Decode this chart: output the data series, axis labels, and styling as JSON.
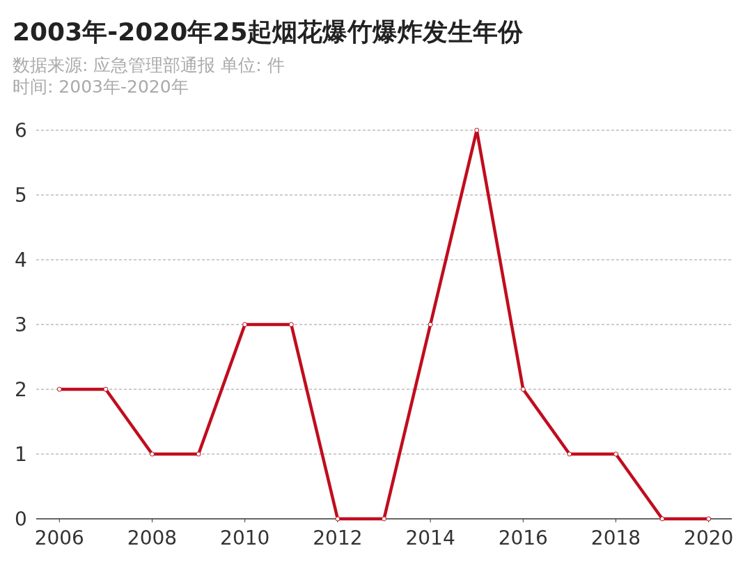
{
  "chart_data": {
    "type": "line",
    "title": "2003年-2020年25起烟花爆竹爆炸发生年份",
    "subtitle": "数据来源: 应急管理部通报 单位: 件",
    "annotations": [
      "时间: 2003年-2020年"
    ],
    "x": [
      2006,
      2007,
      2008,
      2009,
      2010,
      2011,
      2012,
      2013,
      2014,
      2015,
      2016,
      2017,
      2018,
      2019,
      2020
    ],
    "series": [
      {
        "color": "#c00d1e",
        "values": [
          2,
          2,
          1,
          1,
          3,
          3,
          0,
          0,
          3,
          6,
          2,
          1,
          1,
          0,
          0
        ]
      }
    ],
    "xlim": [
      2005.5,
      2020.5
    ],
    "xticks": [
      2006,
      2008,
      2010,
      2012,
      2014,
      2016,
      2018,
      2020
    ],
    "ylim": [
      0,
      6
    ],
    "yticks": [
      0,
      1,
      2,
      3,
      4,
      5,
      6
    ],
    "grid": "y",
    "marker": "circle",
    "line_style": "solid"
  }
}
